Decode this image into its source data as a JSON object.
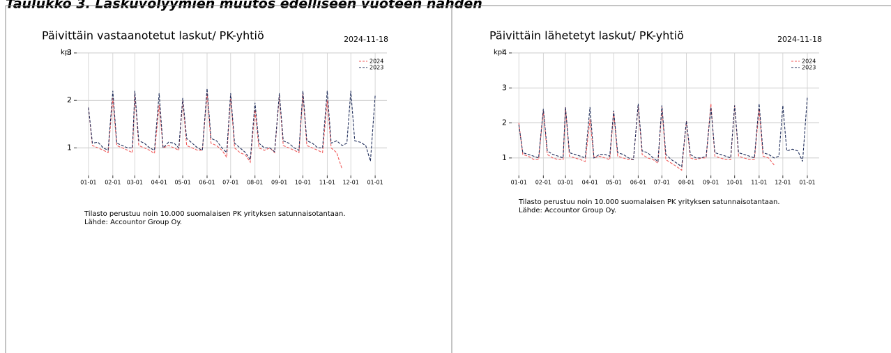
{
  "title": "Taulukko 3. Laskuvolyymien muutos edelliseen vuoteen nähden",
  "chart_data": [
    {
      "type": "line",
      "title": "Päivittäin vastaanotetut laskut/ PK-yhtiö",
      "date": "2024-11-18",
      "ylabel": "kpl",
      "x": [
        0,
        5,
        12,
        19,
        25,
        31,
        36,
        43,
        50,
        56,
        59,
        64,
        71,
        78,
        84,
        90,
        95,
        102,
        109,
        115,
        120,
        125,
        132,
        139,
        145,
        151,
        156,
        163,
        170,
        176,
        181,
        186,
        193,
        200,
        206,
        212,
        217,
        224,
        231,
        237,
        243,
        248,
        255,
        262,
        268,
        273,
        278,
        285,
        292,
        298,
        304,
        309,
        316,
        323,
        329,
        334,
        339,
        346,
        353,
        359,
        365
      ],
      "series": [
        {
          "name": "2024",
          "color": "#f05a5a",
          "values": [
            1.85,
            1.05,
            1.0,
            0.95,
            0.9,
            2.05,
            1.05,
            1.0,
            0.95,
            0.9,
            2.15,
            1.05,
            1.0,
            0.95,
            0.88,
            1.9,
            1.0,
            1.05,
            1.0,
            0.95,
            2.0,
            1.05,
            1.0,
            0.95,
            0.95,
            2.15,
            1.1,
            1.05,
            0.95,
            0.8,
            2.1,
            1.0,
            0.9,
            0.85,
            0.7,
            1.8,
            1.0,
            0.95,
            1.0,
            0.9,
            2.1,
            1.05,
            1.0,
            0.95,
            0.9,
            2.15,
            1.05,
            1.0,
            0.95,
            0.9,
            2.0,
            1.0,
            0.9,
            0.55,
            null,
            null,
            null,
            null,
            null,
            null,
            null
          ]
        },
        {
          "name": "2023",
          "color": "#1f2d5a",
          "values": [
            1.85,
            1.1,
            1.12,
            1.0,
            0.95,
            2.2,
            1.1,
            1.05,
            1.0,
            1.0,
            2.2,
            1.15,
            1.1,
            1.0,
            0.95,
            2.15,
            1.0,
            1.12,
            1.1,
            1.0,
            2.05,
            1.2,
            1.1,
            1.0,
            0.95,
            2.25,
            1.2,
            1.15,
            1.0,
            0.9,
            2.15,
            1.1,
            1.0,
            0.9,
            0.75,
            1.95,
            1.1,
            1.0,
            1.0,
            0.92,
            2.15,
            1.15,
            1.1,
            1.0,
            0.95,
            2.2,
            1.15,
            1.1,
            1.0,
            1.0,
            2.2,
            1.1,
            1.15,
            1.05,
            1.1,
            2.2,
            1.15,
            1.12,
            1.05,
            0.72,
            2.1
          ]
        }
      ],
      "xlim": [
        -15,
        380
      ],
      "ylim": [
        0.42,
        3
      ],
      "yticks": [
        1,
        2,
        3
      ],
      "xticks": [
        {
          "value": 0,
          "label": "01-01"
        },
        {
          "value": 31,
          "label": "02-01"
        },
        {
          "value": 59,
          "label": "03-01"
        },
        {
          "value": 90,
          "label": "04-01"
        },
        {
          "value": 120,
          "label": "05-01"
        },
        {
          "value": 151,
          "label": "06-01"
        },
        {
          "value": 181,
          "label": "07-01"
        },
        {
          "value": 212,
          "label": "08-01"
        },
        {
          "value": 243,
          "label": "09-01"
        },
        {
          "value": 273,
          "label": "10-01"
        },
        {
          "value": 304,
          "label": "11-01"
        },
        {
          "value": 334,
          "label": "12-01"
        },
        {
          "value": 365,
          "label": "01-01"
        }
      ],
      "grid": true,
      "legend": "upper right",
      "note": [
        "Tilasto perustuu noin 10.000 suomalaisen PK yrityksen satunnaisotantaan.",
        "Lähde: Accountor Group Oy."
      ]
    },
    {
      "type": "line",
      "title": "Päivittäin lähetetyt laskut/ PK-yhtiö",
      "date": "2024-11-18",
      "ylabel": "kpl",
      "x": [
        0,
        5,
        12,
        19,
        25,
        31,
        36,
        43,
        50,
        56,
        59,
        64,
        71,
        78,
        84,
        90,
        95,
        102,
        109,
        115,
        120,
        125,
        132,
        139,
        145,
        151,
        156,
        163,
        170,
        176,
        181,
        186,
        193,
        200,
        206,
        212,
        217,
        224,
        231,
        237,
        243,
        248,
        255,
        262,
        268,
        273,
        278,
        285,
        292,
        298,
        304,
        309,
        316,
        323,
        329,
        334,
        339,
        346,
        353,
        359,
        365
      ],
      "series": [
        {
          "name": "2024",
          "color": "#f05a5a",
          "values": [
            2.0,
            1.1,
            1.05,
            0.95,
            0.95,
            2.35,
            1.1,
            1.0,
            0.95,
            0.95,
            2.45,
            1.05,
            1.0,
            0.95,
            0.9,
            2.1,
            1.0,
            1.05,
            1.0,
            0.95,
            2.3,
            1.05,
            1.0,
            0.95,
            0.95,
            2.5,
            1.1,
            1.0,
            0.95,
            0.85,
            2.45,
            0.95,
            0.85,
            0.75,
            0.65,
            2.05,
            1.0,
            0.95,
            1.0,
            1.0,
            2.55,
            1.05,
            1.0,
            0.95,
            0.95,
            2.5,
            1.05,
            1.0,
            0.95,
            0.95,
            2.4,
            1.05,
            1.0,
            0.8,
            null,
            null,
            null,
            null,
            null,
            null,
            null
          ]
        },
        {
          "name": "2023",
          "color": "#1f2d5a",
          "values": [
            1.95,
            1.15,
            1.1,
            1.05,
            1.0,
            2.4,
            1.2,
            1.1,
            1.05,
            1.0,
            2.45,
            1.15,
            1.1,
            1.05,
            1.0,
            2.45,
            1.0,
            1.1,
            1.1,
            1.05,
            2.35,
            1.15,
            1.1,
            1.0,
            0.95,
            2.55,
            1.2,
            1.15,
            1.0,
            0.9,
            2.5,
            1.1,
            0.95,
            0.85,
            0.75,
            2.05,
            1.1,
            1.0,
            1.0,
            1.05,
            2.45,
            1.15,
            1.1,
            1.05,
            1.0,
            2.5,
            1.15,
            1.1,
            1.05,
            1.0,
            2.55,
            1.15,
            1.1,
            1.0,
            1.05,
            2.5,
            1.2,
            1.25,
            1.2,
            0.9,
            2.75
          ]
        }
      ],
      "xlim": [
        -9,
        380
      ],
      "ylim": [
        0.5,
        4
      ],
      "yticks": [
        1,
        2,
        3,
        4
      ],
      "xticks": [
        {
          "value": 0,
          "label": "01-01"
        },
        {
          "value": 31,
          "label": "02-01"
        },
        {
          "value": 59,
          "label": "03-01"
        },
        {
          "value": 90,
          "label": "04-01"
        },
        {
          "value": 120,
          "label": "05-01"
        },
        {
          "value": 151,
          "label": "06-01"
        },
        {
          "value": 181,
          "label": "07-01"
        },
        {
          "value": 212,
          "label": "08-01"
        },
        {
          "value": 243,
          "label": "09-01"
        },
        {
          "value": 273,
          "label": "10-01"
        },
        {
          "value": 304,
          "label": "11-01"
        },
        {
          "value": 334,
          "label": "12-01"
        },
        {
          "value": 365,
          "label": "01-01"
        }
      ],
      "grid": true,
      "legend": "upper right",
      "note": [
        "Tilasto perustuu noin 10.000 suomalaisen PK yrityksen satunnaisotantaan.",
        "Lähde: Accountor Group Oy."
      ]
    }
  ]
}
